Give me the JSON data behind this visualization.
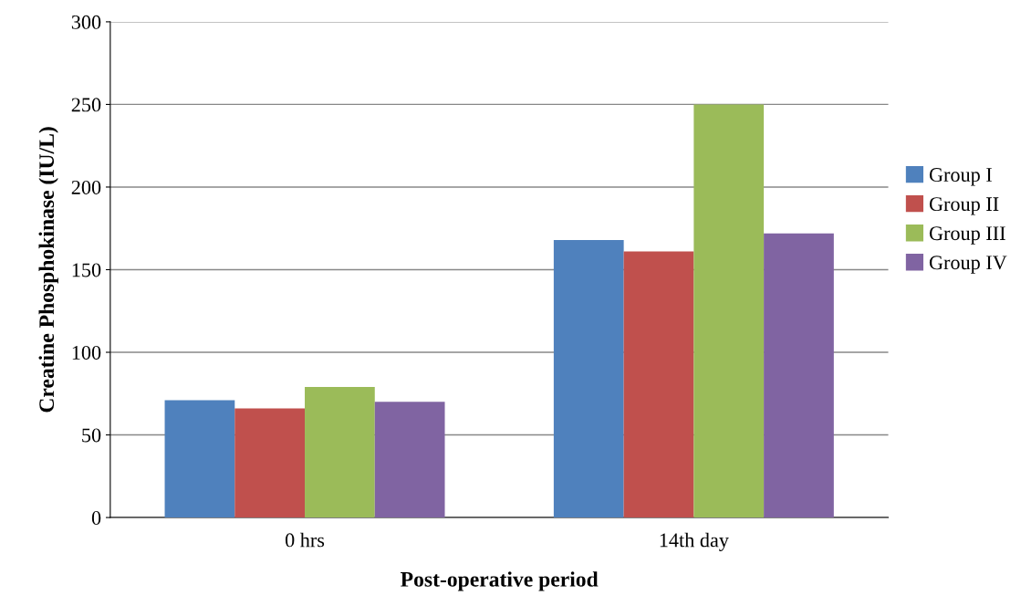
{
  "chart_data": {
    "type": "bar",
    "xlabel": "Post-operative period",
    "ylabel": "Creatine Phosphokinase (IU/L)",
    "categories": [
      "0 hrs",
      "14th day"
    ],
    "series": [
      {
        "name": "Group I",
        "color": "#4f81bd",
        "values": [
          71,
          168
        ]
      },
      {
        "name": "Group II",
        "color": "#c0504d",
        "values": [
          66,
          161
        ]
      },
      {
        "name": "Group III",
        "color": "#9bbb59",
        "values": [
          79,
          250
        ]
      },
      {
        "name": "Group IV",
        "color": "#8064a2",
        "values": [
          70,
          172
        ]
      }
    ],
    "ylim": [
      0,
      300
    ],
    "yticks": [
      0,
      50,
      100,
      150,
      200,
      250,
      300
    ],
    "grid": "y",
    "legend": "right"
  }
}
